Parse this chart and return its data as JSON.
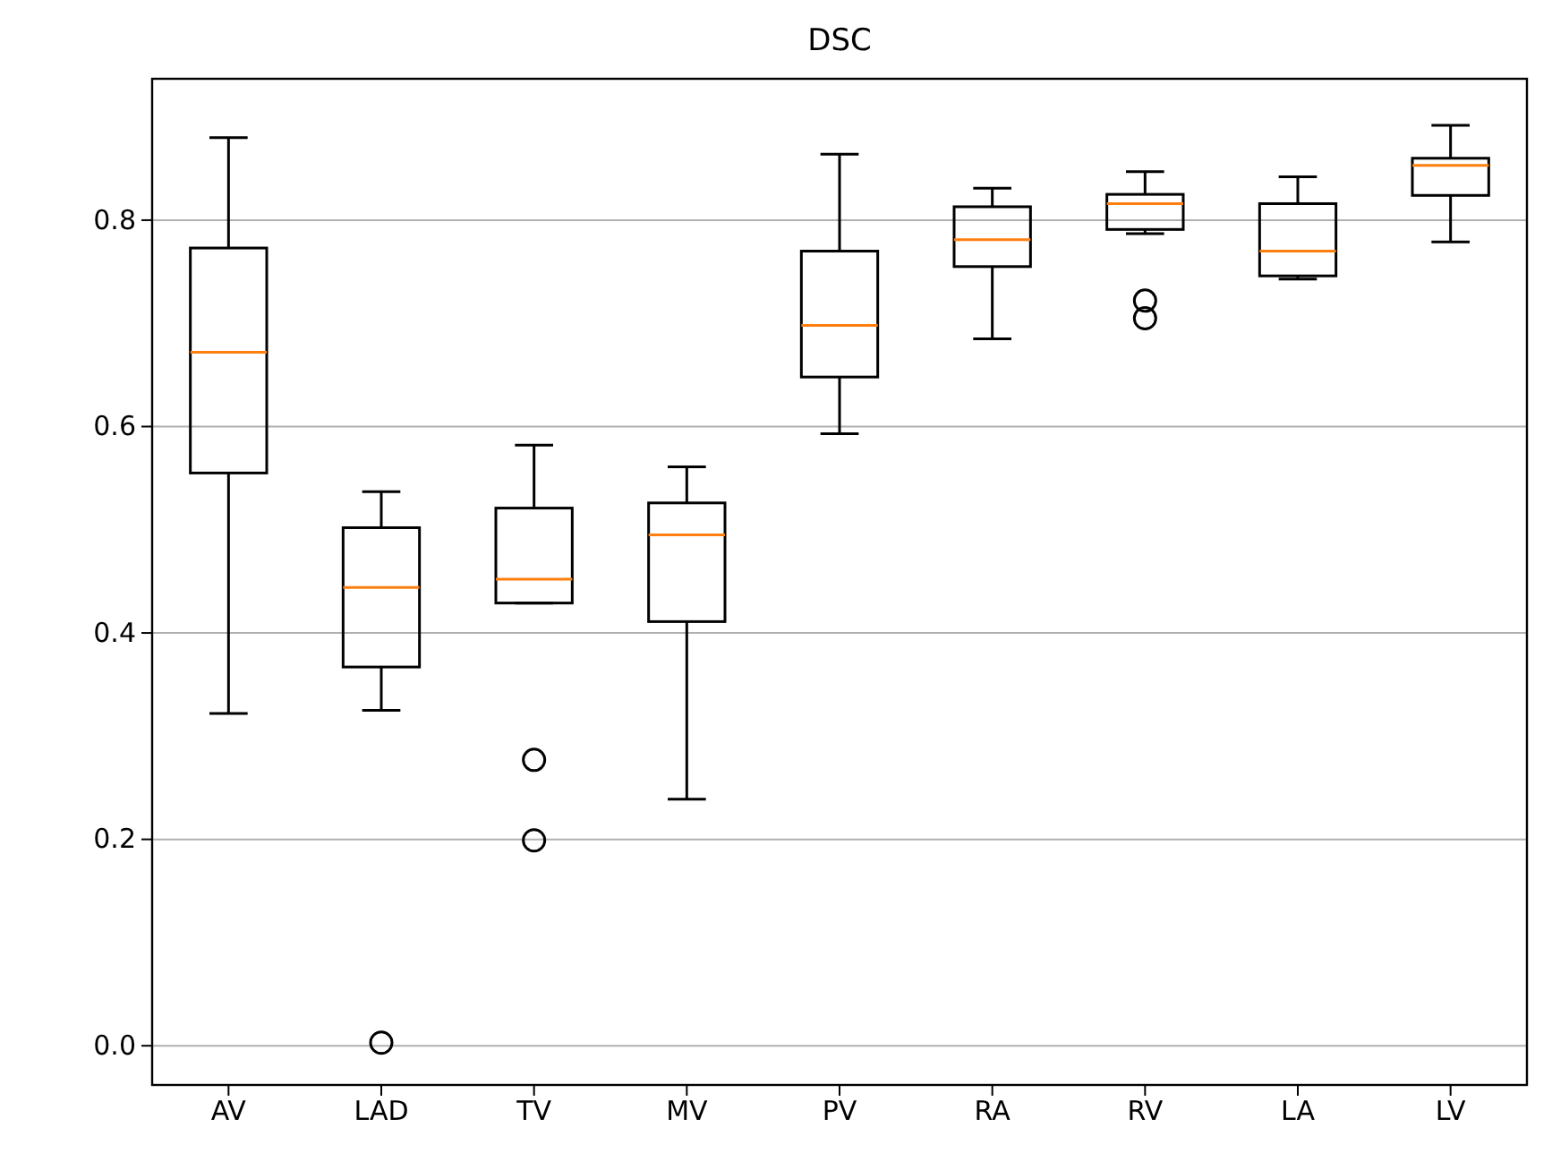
{
  "chart_data": {
    "type": "box",
    "title": "DSC",
    "categories": [
      "AV",
      "LAD",
      "TV",
      "MV",
      "PV",
      "RA",
      "RV",
      "LA",
      "LV"
    ],
    "boxes": [
      {
        "low": 0.322,
        "q1": 0.555,
        "median": 0.672,
        "q3": 0.773,
        "high": 0.88
      },
      {
        "low": 0.325,
        "q1": 0.367,
        "median": 0.444,
        "q3": 0.502,
        "high": 0.537,
        "outliers": [
          0.003
        ]
      },
      {
        "low": 0.429,
        "q1": 0.429,
        "median": 0.452,
        "q3": 0.521,
        "high": 0.582,
        "outliers": [
          0.277,
          0.199
        ]
      },
      {
        "low": 0.239,
        "q1": 0.411,
        "median": 0.495,
        "q3": 0.526,
        "high": 0.561
      },
      {
        "low": 0.593,
        "q1": 0.648,
        "median": 0.698,
        "q3": 0.77,
        "high": 0.864
      },
      {
        "low": 0.685,
        "q1": 0.755,
        "median": 0.781,
        "q3": 0.813,
        "high": 0.831
      },
      {
        "low": 0.787,
        "q1": 0.791,
        "median": 0.816,
        "q3": 0.825,
        "high": 0.847,
        "outliers": [
          0.722,
          0.705
        ]
      },
      {
        "low": 0.743,
        "q1": 0.746,
        "median": 0.77,
        "q3": 0.816,
        "high": 0.842
      },
      {
        "low": 0.779,
        "q1": 0.824,
        "median": 0.853,
        "q3": 0.86,
        "high": 0.892
      }
    ],
    "color": "#000000",
    "ylim": [
      -0.038,
      0.937
    ],
    "yticks": [
      {
        "value": 0,
        "label": "0.0"
      },
      {
        "value": 0.2,
        "label": "0.2"
      },
      {
        "value": 0.4,
        "label": "0.4"
      },
      {
        "value": 0.6,
        "label": "0.6"
      },
      {
        "value": 0.8,
        "label": "0.8"
      }
    ],
    "grid": "y"
  }
}
